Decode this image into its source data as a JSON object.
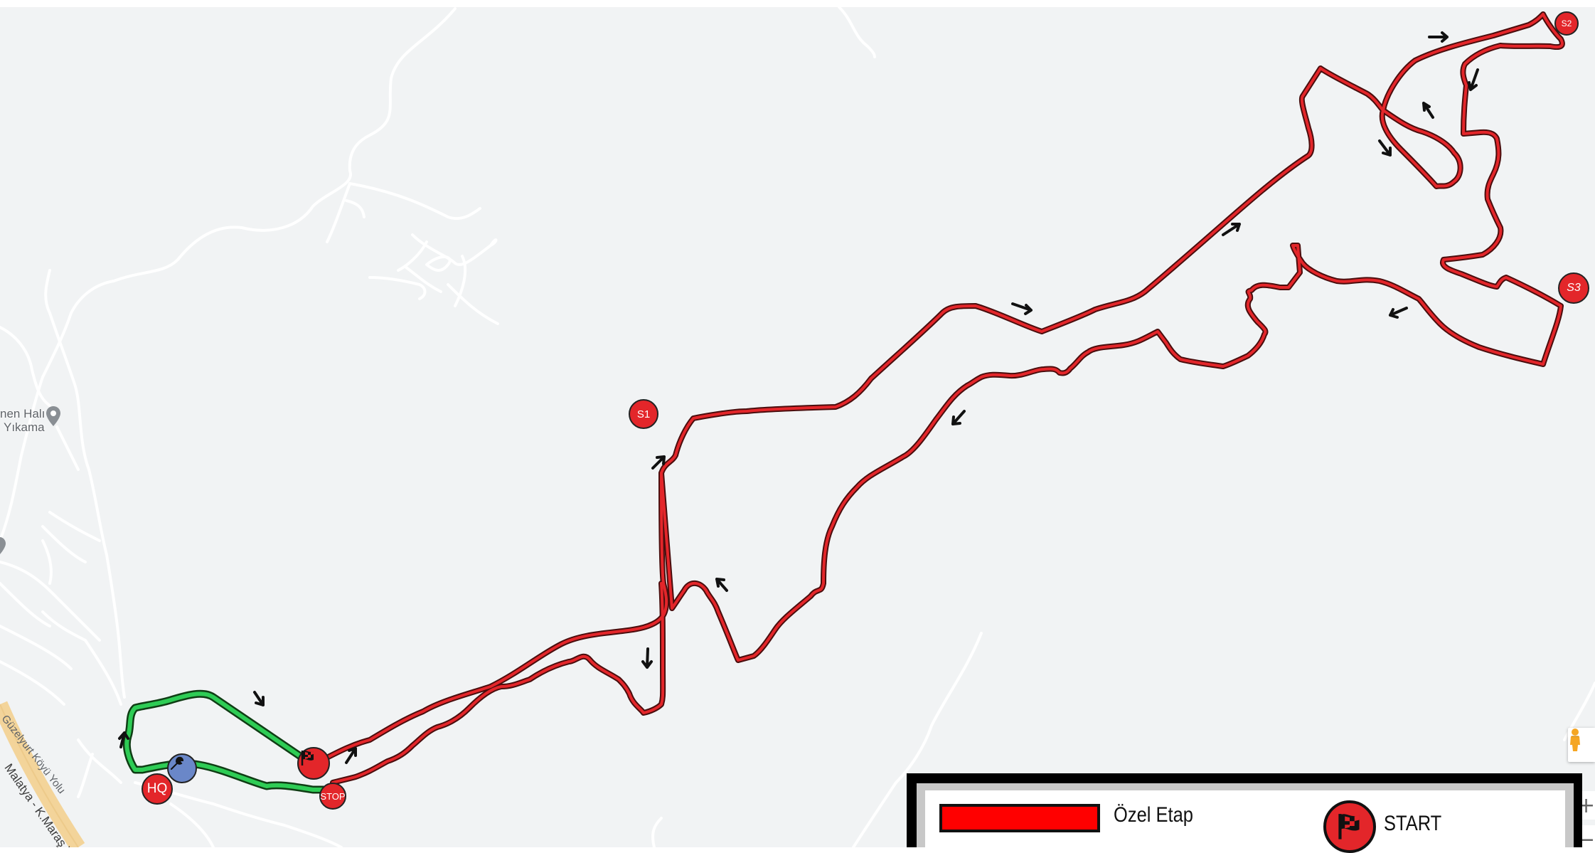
{
  "map": {
    "places": [
      {
        "name": "İnen Halı Yıkama",
        "line1": "nen Halı",
        "line2": "Yıkama",
        "icon": "place-pin-icon"
      }
    ],
    "roads": [
      {
        "name": "Güzelyurt Köyü Yolu"
      },
      {
        "name": "Malatya - K.Maraş Y."
      }
    ],
    "route_colors": {
      "stage": "#e3262a",
      "stage_outline": "#4a0d0d",
      "liaison": "#2ecc55",
      "liaison_outline": "#0f3d14"
    },
    "markers": {
      "hq": "HQ",
      "stop": "STOP",
      "s1": "S1",
      "s2": "S2",
      "s3": "S3",
      "start_icon": "checkered-flag-icon",
      "service_icon": "wrench-icon"
    },
    "controls": {
      "pegman": "street-view-pegman-icon",
      "zoom_in": "+",
      "zoom_out": "−"
    }
  },
  "legend": {
    "special_stage_color": "#ff0000",
    "special_stage_label": "Özel Etap",
    "start_label": "START",
    "start_icon": "checkered-flag-icon"
  }
}
